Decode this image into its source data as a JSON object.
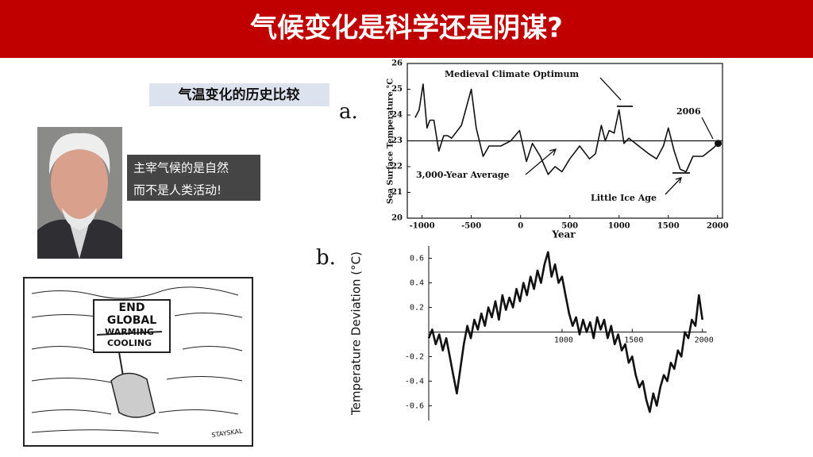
{
  "title": "气候变化是科学还是阴谋?",
  "subtitle": "气温变化的历史比较",
  "quote": [
    "主宰气候的是自然",
    "而不是人类活动!"
  ],
  "cartoon": {
    "sign": [
      "END",
      "GLOBAL",
      "WARMING",
      "COOLING"
    ],
    "signature": "STAYSKAL"
  },
  "chart_data": [
    {
      "type": "line",
      "label": "a.",
      "y_label": "Sea Surface Temperature °C",
      "x_label": "Year",
      "x": [
        -1070,
        -1030,
        -990,
        -950,
        -920,
        -880,
        -830,
        -780,
        -740,
        -700,
        -600,
        -500,
        -450,
        -380,
        -320,
        -200,
        -100,
        -10,
        60,
        120,
        200,
        280,
        350,
        420,
        500,
        600,
        700,
        760,
        820,
        860,
        900,
        950,
        1000,
        1050,
        1100,
        1200,
        1300,
        1380,
        1450,
        1500,
        1560,
        1620,
        1680,
        1750,
        1850,
        1950,
        2006
      ],
      "series": [
        {
          "color": "#111111",
          "values": [
            23.9,
            24.2,
            25.2,
            23.5,
            23.8,
            23.8,
            22.6,
            23.2,
            23.2,
            23.1,
            23.6,
            25.0,
            23.5,
            22.4,
            22.8,
            22.8,
            23.0,
            23.4,
            22.2,
            22.9,
            22.4,
            21.7,
            22.0,
            21.8,
            22.3,
            22.8,
            22.3,
            22.5,
            23.6,
            23.0,
            23.4,
            23.3,
            24.2,
            22.9,
            23.1,
            22.8,
            22.5,
            22.3,
            22.8,
            23.5,
            22.6,
            21.9,
            21.8,
            22.4,
            22.4,
            22.7,
            22.9
          ]
        }
      ],
      "average": 23,
      "annotations": [
        "Medieval Climate Optimum",
        "3,000-Year Average",
        "Little Ice Age",
        "2006"
      ],
      "xlim": [
        -1150,
        2050
      ],
      "ylim": [
        20,
        26
      ],
      "xticks": [
        -1000,
        -500,
        0,
        500,
        1000,
        1500,
        2000
      ],
      "yticks": [
        20,
        21,
        22,
        23,
        24,
        25,
        26
      ]
    },
    {
      "type": "line",
      "label": "b.",
      "y_label": "Temperature Deviation (°C)",
      "x": [
        50,
        75,
        100,
        125,
        150,
        175,
        200,
        225,
        250,
        275,
        300,
        325,
        350,
        375,
        400,
        425,
        450,
        475,
        500,
        525,
        550,
        575,
        600,
        625,
        650,
        675,
        700,
        725,
        750,
        775,
        800,
        825,
        850,
        875,
        900,
        925,
        950,
        975,
        1000,
        1025,
        1050,
        1075,
        1100,
        1125,
        1150,
        1175,
        1200,
        1225,
        1250,
        1275,
        1300,
        1325,
        1350,
        1375,
        1400,
        1425,
        1450,
        1475,
        1500,
        1525,
        1550,
        1575,
        1600,
        1625,
        1650,
        1675,
        1700,
        1725,
        1750,
        1775,
        1800,
        1825,
        1850,
        1875,
        1900,
        1925,
        1950,
        1975,
        2000
      ],
      "series": [
        {
          "color": "#111111",
          "values": [
            -0.05,
            0.02,
            -0.1,
            -0.02,
            -0.15,
            -0.05,
            -0.2,
            -0.35,
            -0.5,
            -0.3,
            -0.1,
            0.05,
            -0.05,
            0.1,
            0.02,
            0.15,
            0.05,
            0.2,
            0.12,
            0.25,
            0.1,
            0.3,
            0.18,
            0.28,
            0.2,
            0.35,
            0.25,
            0.4,
            0.3,
            0.45,
            0.35,
            0.5,
            0.4,
            0.55,
            0.65,
            0.45,
            0.55,
            0.4,
            0.45,
            0.3,
            0.15,
            0.05,
            0.12,
            -0.02,
            0.1,
            0.0,
            0.08,
            -0.05,
            0.12,
            0.02,
            0.1,
            -0.05,
            0.05,
            -0.1,
            -0.02,
            -0.15,
            -0.1,
            -0.25,
            -0.2,
            -0.35,
            -0.45,
            -0.4,
            -0.55,
            -0.65,
            -0.5,
            -0.6,
            -0.45,
            -0.35,
            -0.4,
            -0.25,
            -0.3,
            -0.15,
            -0.2,
            0.0,
            -0.05,
            0.1,
            0.05,
            0.3,
            0.1
          ]
        }
      ],
      "xlim": [
        50,
        2030
      ],
      "ylim": [
        -0.72,
        0.7
      ],
      "xticks": [
        1000,
        1500,
        2000
      ],
      "yticks": [
        0.6,
        0.4,
        0.2,
        -0.2,
        -0.4,
        -0.6
      ]
    }
  ]
}
